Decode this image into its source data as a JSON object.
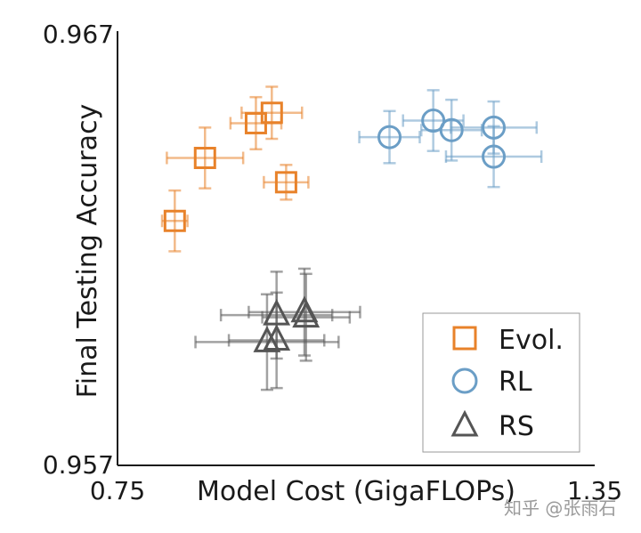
{
  "chart_data": {
    "type": "scatter",
    "xlabel": "Model Cost (GigaFLOPs)",
    "ylabel": "Final Testing Accuracy",
    "xlim": [
      0.75,
      1.35
    ],
    "ylim": [
      0.957,
      0.967
    ],
    "x_tick_labels": [
      "0.75",
      "1.35"
    ],
    "y_tick_labels": [
      "0.957",
      "0.967"
    ],
    "grid": false,
    "legend_position": "lower-right",
    "series": [
      {
        "name": "Evol.",
        "marker": "square",
        "color": "#e8822a",
        "points": [
          {
            "x": 0.822,
            "y": 0.96263,
            "xerr": 0.016,
            "yerr": 0.0007
          },
          {
            "x": 0.86,
            "y": 0.96408,
            "xerr": 0.048,
            "yerr": 0.0007
          },
          {
            "x": 0.924,
            "y": 0.96488,
            "xerr": 0.032,
            "yerr": 0.0006
          },
          {
            "x": 0.944,
            "y": 0.96512,
            "xerr": 0.038,
            "yerr": 0.0006
          },
          {
            "x": 0.962,
            "y": 0.96352,
            "xerr": 0.028,
            "yerr": 0.0004
          }
        ]
      },
      {
        "name": "RL",
        "marker": "circle",
        "color": "#6b9ec6",
        "points": [
          {
            "x": 1.092,
            "y": 0.96456,
            "xerr": 0.038,
            "yerr": 0.0006
          },
          {
            "x": 1.147,
            "y": 0.96494,
            "xerr": 0.038,
            "yerr": 0.0007
          },
          {
            "x": 1.17,
            "y": 0.96472,
            "xerr": 0.038,
            "yerr": 0.0007
          },
          {
            "x": 1.223,
            "y": 0.96478,
            "xerr": 0.054,
            "yerr": 0.0006
          },
          {
            "x": 1.223,
            "y": 0.96411,
            "xerr": 0.06,
            "yerr": 0.0007
          }
        ]
      },
      {
        "name": "RS",
        "marker": "triangle",
        "color": "#555555",
        "points": [
          {
            "x": 0.95,
            "y": 0.96046,
            "xerr": 0.07,
            "yerr": 0.001
          },
          {
            "x": 0.985,
            "y": 0.96053,
            "xerr": 0.07,
            "yerr": 0.001
          },
          {
            "x": 0.987,
            "y": 0.96041,
            "xerr": 0.055,
            "yerr": 0.001
          },
          {
            "x": 0.938,
            "y": 0.95984,
            "xerr": 0.09,
            "yerr": 0.0011
          },
          {
            "x": 0.95,
            "y": 0.95988,
            "xerr": 0.06,
            "yerr": 0.0011
          }
        ]
      }
    ]
  },
  "watermark": "知乎 @张雨石"
}
